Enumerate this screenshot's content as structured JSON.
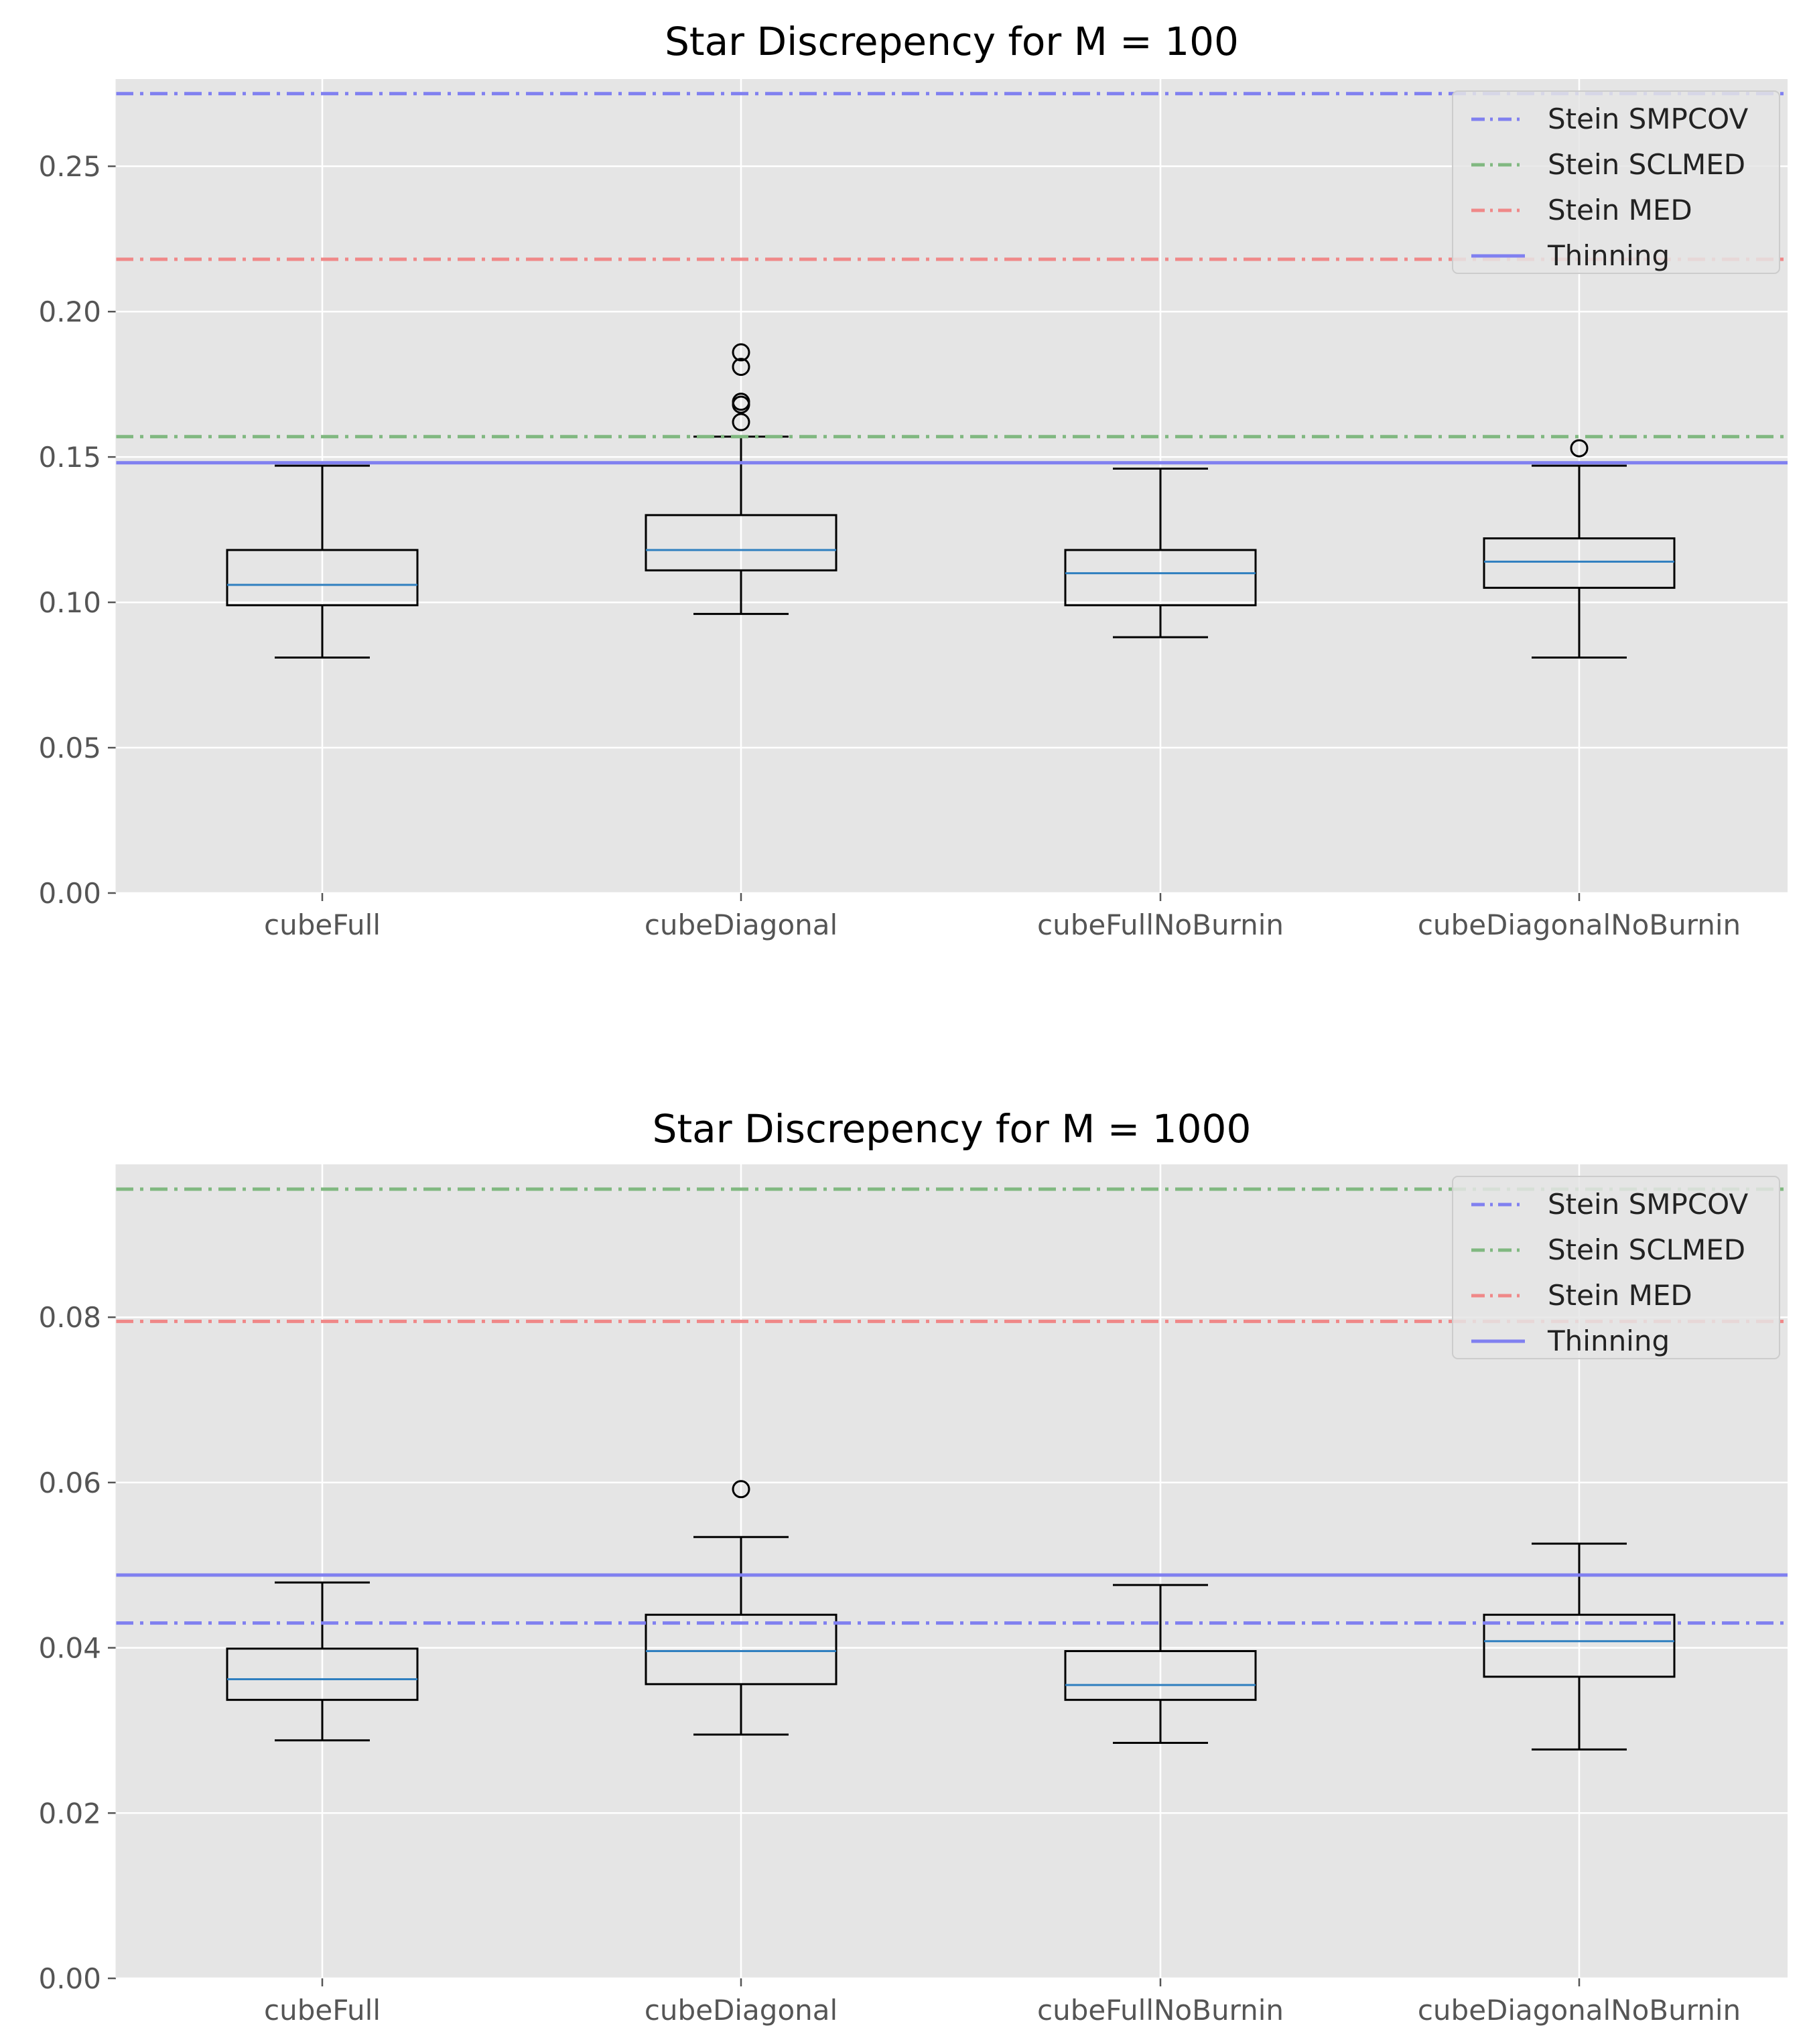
{
  "chart_data": [
    {
      "type": "box",
      "title": "Star Discrepency for M = 100",
      "xlabel": "",
      "ylabel": "",
      "ylim": [
        0,
        0.28
      ],
      "yticks": [
        {
          "value": 0.0,
          "label": "0.00"
        },
        {
          "value": 0.05,
          "label": "0.05"
        },
        {
          "value": 0.1,
          "label": "0.10"
        },
        {
          "value": 0.15,
          "label": "0.15"
        },
        {
          "value": 0.2,
          "label": "0.20"
        },
        {
          "value": 0.25,
          "label": "0.25"
        }
      ],
      "grid": true,
      "categories": [
        "cubeFull",
        "cubeDiagonal",
        "cubeFullNoBurnin",
        "cubeDiagonalNoBurnin"
      ],
      "boxes": [
        {
          "category": "cubeFull",
          "whisker_low": 0.081,
          "q1": 0.099,
          "median": 0.106,
          "q3": 0.118,
          "whisker_high": 0.147,
          "outliers": []
        },
        {
          "category": "cubeDiagonal",
          "whisker_low": 0.096,
          "q1": 0.111,
          "median": 0.118,
          "q3": 0.13,
          "whisker_high": 0.157,
          "outliers": [
            0.162,
            0.168,
            0.169,
            0.181,
            0.186
          ]
        },
        {
          "category": "cubeFullNoBurnin",
          "whisker_low": 0.088,
          "q1": 0.099,
          "median": 0.11,
          "q3": 0.118,
          "whisker_high": 0.146,
          "outliers": []
        },
        {
          "category": "cubeDiagonalNoBurnin",
          "whisker_low": 0.081,
          "q1": 0.105,
          "median": 0.114,
          "q3": 0.122,
          "whisker_high": 0.147,
          "outliers": [
            0.153
          ]
        }
      ],
      "reference_lines": [
        {
          "name": "Stein SMPCOV",
          "value": 0.275,
          "style": "dashdot",
          "color": "#8080f0"
        },
        {
          "name": "Stein SCLMED",
          "value": 0.157,
          "style": "dashdot",
          "color": "#80b880"
        },
        {
          "name": "Stein MED",
          "value": 0.218,
          "style": "dashdot",
          "color": "#f08888"
        },
        {
          "name": "Thinning",
          "value": 0.148,
          "style": "solid",
          "color": "#8080f0"
        }
      ],
      "legend": {
        "placement": "top-right",
        "entries": [
          "Stein SMPCOV",
          "Stein SCLMED",
          "Stein MED",
          "Thinning"
        ]
      }
    },
    {
      "type": "box",
      "title": "Star Discrepency for M = 1000",
      "xlabel": "",
      "ylabel": "",
      "ylim": [
        0,
        0.0985
      ],
      "yticks": [
        {
          "value": 0.0,
          "label": "0.00"
        },
        {
          "value": 0.02,
          "label": "0.02"
        },
        {
          "value": 0.04,
          "label": "0.04"
        },
        {
          "value": 0.06,
          "label": "0.06"
        },
        {
          "value": 0.08,
          "label": "0.08"
        }
      ],
      "grid": true,
      "categories": [
        "cubeFull",
        "cubeDiagonal",
        "cubeFullNoBurnin",
        "cubeDiagonalNoBurnin"
      ],
      "boxes": [
        {
          "category": "cubeFull",
          "whisker_low": 0.0288,
          "q1": 0.0337,
          "median": 0.0362,
          "q3": 0.0399,
          "whisker_high": 0.0479,
          "outliers": []
        },
        {
          "category": "cubeDiagonal",
          "whisker_low": 0.0295,
          "q1": 0.0356,
          "median": 0.0396,
          "q3": 0.044,
          "whisker_high": 0.0534,
          "outliers": [
            0.0592
          ]
        },
        {
          "category": "cubeFullNoBurnin",
          "whisker_low": 0.0285,
          "q1": 0.0337,
          "median": 0.0355,
          "q3": 0.0396,
          "whisker_high": 0.0476,
          "outliers": []
        },
        {
          "category": "cubeDiagonalNoBurnin",
          "whisker_low": 0.0277,
          "q1": 0.0365,
          "median": 0.0408,
          "q3": 0.044,
          "whisker_high": 0.0526,
          "outliers": []
        }
      ],
      "reference_lines": [
        {
          "name": "Stein SMPCOV",
          "value": 0.043,
          "style": "dashdot",
          "color": "#8080f0"
        },
        {
          "name": "Stein SCLMED",
          "value": 0.0955,
          "style": "dashdot",
          "color": "#80b880"
        },
        {
          "name": "Stein MED",
          "value": 0.0795,
          "style": "dashdot",
          "color": "#f08888"
        },
        {
          "name": "Thinning",
          "value": 0.0488,
          "style": "solid",
          "color": "#8080f0"
        }
      ],
      "legend": {
        "placement": "top-right",
        "entries": [
          "Stein SMPCOV",
          "Stein SCLMED",
          "Stein MED",
          "Thinning"
        ]
      }
    }
  ],
  "colors": {
    "plot_background": "#e5e5e5",
    "grid": "#ffffff",
    "box_edge": "#000000",
    "median": "#2f7fbf",
    "legend_background": "#e5e5e5",
    "legend_border": "#cccccc"
  }
}
